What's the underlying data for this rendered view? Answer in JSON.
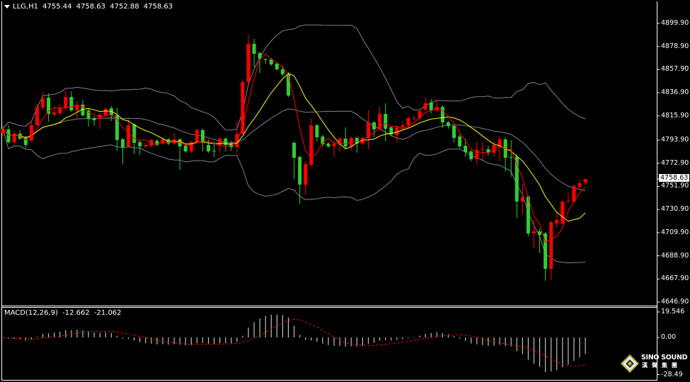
{
  "header": {
    "symbol": "LLG,H1",
    "open": "4755.44",
    "high": "4758.63",
    "low": "4752.88",
    "close": "4758.63"
  },
  "price_axis": {
    "ticks": [
      "4899.90",
      "4878.90",
      "4857.90",
      "4836.90",
      "4815.90",
      "4793.90",
      "4772.90",
      "4751.90",
      "4730.90",
      "4709.90",
      "4688.90",
      "4667.90",
      "4646.90"
    ],
    "current_price": "4758.63"
  },
  "macd": {
    "label": "MACD(12,26,9)",
    "main_value": "-12.662",
    "signal_value": "-21.062",
    "ticks": [
      "19.546",
      "0.00",
      "-28.49"
    ]
  },
  "logo": {
    "name": "SINO SOUND",
    "subtitle": "漢聲集團"
  },
  "colors": {
    "background": "#000000",
    "bull_candle": "#ff0000",
    "bear_candle": "#32cd32",
    "fast_ma": "#ff0000",
    "slow_ma": "#ffff00",
    "bollinger": "#7a8190",
    "macd_histogram": "#c0c0c0",
    "macd_signal": "#ff0000",
    "text": "#ffffff"
  },
  "chart_data": {
    "type": "candlestick",
    "symbol": "LLG",
    "timeframe": "H1",
    "ylim": [
      4646.9,
      4899.9
    ],
    "indicators": [
      "moving average (red)",
      "moving average (yellow)",
      "Bollinger bands (gray)",
      "MACD(12,26,9)"
    ],
    "candles_ohlc": [
      [
        4800.4,
        4806.8,
        4797.8,
        4804.2
      ],
      [
        4803.6,
        4807.4,
        4790.8,
        4792.0
      ],
      [
        4792.0,
        4801.7,
        4789.5,
        4799.7
      ],
      [
        4799.7,
        4803.0,
        4794.0,
        4795.2
      ],
      [
        4795.9,
        4797.8,
        4786.3,
        4789.5
      ],
      [
        4793.3,
        4811.3,
        4792.7,
        4807.4
      ],
      [
        4807.4,
        4826.7,
        4806.8,
        4824.1
      ],
      [
        4823.5,
        4837.6,
        4821.6,
        4831.8
      ],
      [
        4832.5,
        4836.3,
        4810.7,
        4817.7
      ],
      [
        4817.1,
        4824.8,
        4815.2,
        4819.0
      ],
      [
        4818.4,
        4826.1,
        4816.4,
        4823.5
      ],
      [
        4822.9,
        4838.9,
        4820.9,
        4833.1
      ],
      [
        4833.1,
        4838.3,
        4819.6,
        4820.9
      ],
      [
        4820.9,
        4829.3,
        4813.9,
        4826.1
      ],
      [
        4826.1,
        4830.6,
        4815.2,
        4816.4
      ],
      [
        4820.9,
        4822.2,
        4806.2,
        4813.2
      ],
      [
        4813.9,
        4815.8,
        4806.8,
        4811.9
      ],
      [
        4813.2,
        4818.4,
        4804.2,
        4817.1
      ],
      [
        4816.4,
        4823.5,
        4815.2,
        4822.2
      ],
      [
        4822.9,
        4824.8,
        4811.3,
        4816.4
      ],
      [
        4816.4,
        4823.5,
        4784.3,
        4794.0
      ],
      [
        4794.6,
        4795.9,
        4772.1,
        4787.5
      ],
      [
        4788.2,
        4812.6,
        4786.9,
        4807.4
      ],
      [
        4808.1,
        4809.4,
        4781.1,
        4791.4
      ],
      [
        4792.0,
        4793.3,
        4780.5,
        4788.2
      ],
      [
        4788.2,
        4790.8,
        4786.9,
        4789.5
      ],
      [
        4788.8,
        4795.2,
        4787.5,
        4794.0
      ],
      [
        4793.3,
        4794.6,
        4788.2,
        4789.5
      ],
      [
        4790.8,
        4795.9,
        4789.5,
        4794.6
      ],
      [
        4794.6,
        4795.9,
        4789.5,
        4790.8
      ],
      [
        4790.8,
        4800.4,
        4789.5,
        4794.6
      ],
      [
        4794.6,
        4795.9,
        4767.0,
        4788.2
      ],
      [
        4788.8,
        4790.1,
        4782.4,
        4783.7
      ],
      [
        4783.7,
        4793.3,
        4782.4,
        4792.0
      ],
      [
        4792.0,
        4804.2,
        4790.8,
        4803.0
      ],
      [
        4803.0,
        4804.2,
        4783.7,
        4793.3
      ],
      [
        4789.5,
        4794.6,
        4782.4,
        4783.7
      ],
      [
        4784.3,
        4792.7,
        4778.6,
        4784.0
      ],
      [
        4789.5,
        4796.5,
        4782.4,
        4795.2
      ],
      [
        4795.2,
        4796.5,
        4783.7,
        4789.5
      ],
      [
        4791.4,
        4793.3,
        4784.3,
        4787.5
      ],
      [
        4787.5,
        4811.3,
        4782.4,
        4799.7
      ],
      [
        4799.7,
        4849.2,
        4799.1,
        4846.6
      ],
      [
        4846.6,
        4889.6,
        4845.3,
        4881.3
      ],
      [
        4881.3,
        4885.8,
        4860.1,
        4872.3
      ],
      [
        4872.9,
        4874.2,
        4855.0,
        4867.8
      ],
      [
        4867.2,
        4868.4,
        4863.3,
        4867.0
      ],
      [
        4867.2,
        4868.4,
        4861.4,
        4862.7
      ],
      [
        4863.3,
        4864.6,
        4856.9,
        4858.2
      ],
      [
        4858.2,
        4861.4,
        4851.8,
        4853.7
      ],
      [
        4854.3,
        4855.6,
        4833.1,
        4834.4
      ],
      [
        4791.4,
        4792.7,
        4758.6,
        4777.9
      ],
      [
        4778.6,
        4779.8,
        4736.2,
        4753.5
      ],
      [
        4753.5,
        4774.7,
        4744.5,
        4772.1
      ],
      [
        4771.5,
        4813.9,
        4770.2,
        4807.4
      ],
      [
        4807.4,
        4808.7,
        4792.7,
        4796.5
      ],
      [
        4797.2,
        4798.5,
        4787.5,
        4790.1
      ],
      [
        4790.8,
        4792.0,
        4786.9,
        4788.2
      ],
      [
        4788.2,
        4792.7,
        4778.6,
        4790.8
      ],
      [
        4790.1,
        4796.5,
        4783.7,
        4795.2
      ],
      [
        4795.2,
        4805.5,
        4785.6,
        4788.2
      ],
      [
        4788.2,
        4797.2,
        4785.0,
        4795.9
      ],
      [
        4795.9,
        4797.2,
        4782.4,
        4790.8
      ],
      [
        4790.8,
        4797.2,
        4789.5,
        4795.9
      ],
      [
        4795.9,
        4820.9,
        4785.6,
        4810.0
      ],
      [
        4810.0,
        4811.3,
        4796.5,
        4803.6
      ],
      [
        4803.6,
        4824.1,
        4802.3,
        4817.7
      ],
      [
        4817.7,
        4827.4,
        4792.7,
        4804.2
      ],
      [
        4805.5,
        4806.8,
        4797.2,
        4799.1
      ],
      [
        4798.5,
        4806.8,
        4792.0,
        4805.5
      ],
      [
        4805.5,
        4810.7,
        4803.6,
        4807.4
      ],
      [
        4807.4,
        4815.2,
        4805.5,
        4813.9
      ],
      [
        4813.9,
        4815.8,
        4811.9,
        4814.1
      ],
      [
        4813.9,
        4821.6,
        4811.9,
        4820.3
      ],
      [
        4821.6,
        4832.5,
        4820.3,
        4827.4
      ],
      [
        4828.0,
        4831.2,
        4818.4,
        4820.9
      ],
      [
        4820.9,
        4830.6,
        4819.6,
        4824.1
      ],
      [
        4824.1,
        4825.4,
        4804.9,
        4810.0
      ],
      [
        4810.0,
        4811.3,
        4804.2,
        4806.8
      ],
      [
        4806.8,
        4808.1,
        4791.4,
        4795.9
      ],
      [
        4797.2,
        4799.1,
        4786.3,
        4788.2
      ],
      [
        4788.8,
        4795.2,
        4778.6,
        4783.0
      ],
      [
        4783.7,
        4785.0,
        4774.7,
        4776.6
      ],
      [
        4776.6,
        4792.0,
        4772.1,
        4785.0
      ],
      [
        4785.0,
        4792.0,
        4774.7,
        4785.6
      ],
      [
        4785.6,
        4788.8,
        4779.8,
        4782.4
      ],
      [
        4782.4,
        4792.7,
        4779.2,
        4789.5
      ],
      [
        4788.2,
        4797.2,
        4774.7,
        4794.6
      ],
      [
        4794.6,
        4796.5,
        4765.7,
        4777.9
      ],
      [
        4778.6,
        4794.0,
        4760.6,
        4778.4
      ],
      [
        4778.6,
        4781.1,
        4723.3,
        4738.1
      ],
      [
        4738.1,
        4754.2,
        4726.5,
        4742.0
      ],
      [
        4742.6,
        4743.9,
        4706.6,
        4709.2
      ],
      [
        4709.2,
        4722.0,
        4695.7,
        4711.1
      ],
      [
        4711.1,
        4713.7,
        4691.2,
        4707.9
      ],
      [
        4709.2,
        4710.5,
        4666.2,
        4677.1
      ],
      [
        4677.1,
        4720.8,
        4666.8,
        4719.5
      ],
      [
        4718.2,
        4728.5,
        4714.3,
        4721.4
      ],
      [
        4718.2,
        4739.4,
        4716.9,
        4738.1
      ],
      [
        4738.7,
        4746.4,
        4736.8,
        4738.9
      ],
      [
        4738.1,
        4753.5,
        4736.8,
        4752.2
      ],
      [
        4751.6,
        4758.0,
        4749.0,
        4754.8
      ],
      [
        4755.44,
        4758.63,
        4752.88,
        4758.63
      ]
    ],
    "macd_ylim": [
      -28.49,
      19.546
    ]
  }
}
